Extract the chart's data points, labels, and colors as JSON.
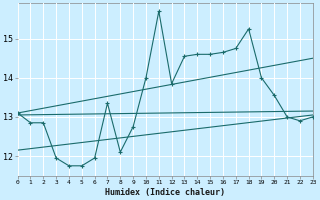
{
  "xlabel": "Humidex (Indice chaleur)",
  "bg_color": "#cceeff",
  "grid_color": "#ffffff",
  "line_color": "#1a6b6b",
  "xlim": [
    0,
    23
  ],
  "ylim": [
    11.5,
    15.9
  ],
  "xticks": [
    0,
    1,
    2,
    3,
    4,
    5,
    6,
    7,
    8,
    9,
    10,
    11,
    12,
    13,
    14,
    15,
    16,
    17,
    18,
    19,
    20,
    21,
    22,
    23
  ],
  "yticks": [
    12,
    13,
    14,
    15
  ],
  "main_y": [
    13.1,
    12.85,
    12.85,
    11.95,
    11.75,
    11.75,
    11.95,
    13.35,
    12.1,
    12.75,
    14.0,
    15.7,
    13.85,
    14.55,
    14.6,
    14.6,
    14.65,
    14.75,
    15.25,
    14.0,
    13.55,
    13.0,
    12.9,
    13.0
  ],
  "reg_lines": [
    {
      "x": [
        0,
        23
      ],
      "y": [
        13.05,
        13.15
      ]
    },
    {
      "x": [
        0,
        23
      ],
      "y": [
        13.1,
        14.5
      ]
    },
    {
      "x": [
        0,
        23
      ],
      "y": [
        12.15,
        13.05
      ]
    }
  ]
}
